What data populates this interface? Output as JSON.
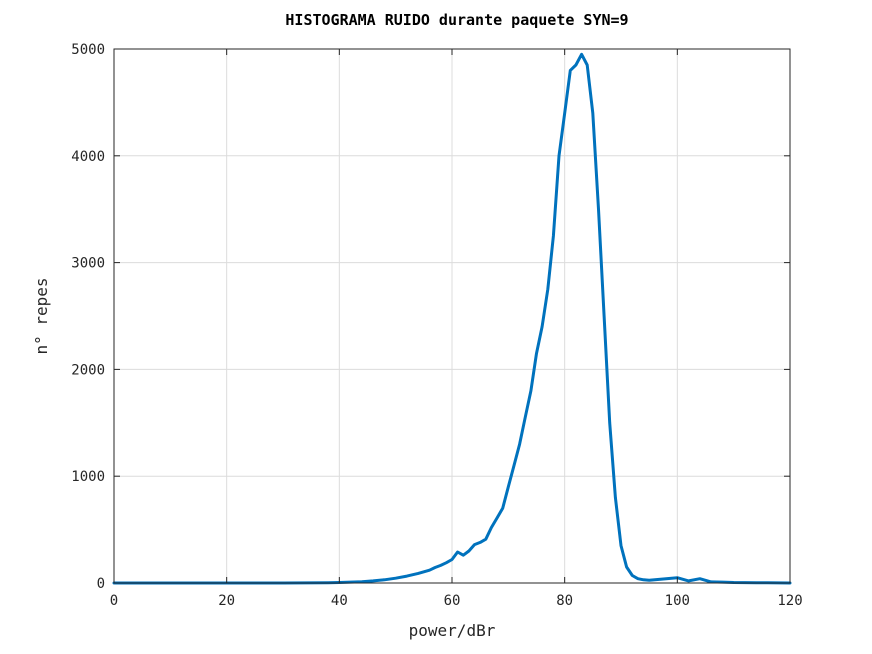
{
  "chart_data": {
    "type": "line",
    "title": "HISTOGRAMA RUIDO durante paquete SYN=9",
    "xlabel": "power/dBr",
    "ylabel": "n° repes",
    "xlim": [
      0,
      120
    ],
    "ylim": [
      0,
      5000
    ],
    "xticks": [
      0,
      20,
      40,
      60,
      80,
      100,
      120
    ],
    "yticks": [
      0,
      1000,
      2000,
      3000,
      4000,
      5000
    ],
    "grid": true,
    "series": [
      {
        "color": "#0072bd",
        "x": [
          0,
          10,
          20,
          30,
          38,
          40,
          42,
          44,
          46,
          48,
          50,
          52,
          54,
          56,
          57,
          58,
          59,
          60,
          61,
          62,
          63,
          64,
          65,
          66,
          67,
          68,
          69,
          70,
          71,
          72,
          73,
          74,
          75,
          76,
          77,
          78,
          79,
          80,
          81,
          82,
          83,
          84,
          85,
          86,
          87,
          88,
          89,
          90,
          91,
          92,
          93,
          94,
          95,
          96,
          98,
          100,
          102,
          104,
          106,
          108,
          110,
          112,
          114,
          116,
          118,
          120
        ],
        "y": [
          0,
          0,
          0,
          0,
          3,
          5,
          8,
          12,
          20,
          30,
          45,
          65,
          90,
          120,
          145,
          165,
          190,
          220,
          290,
          260,
          300,
          360,
          380,
          410,
          520,
          610,
          700,
          900,
          1100,
          1300,
          1550,
          1800,
          2150,
          2400,
          2750,
          3250,
          4000,
          4400,
          4800,
          4850,
          4950,
          4850,
          4400,
          3500,
          2500,
          1500,
          800,
          350,
          150,
          70,
          40,
          30,
          25,
          30,
          40,
          50,
          20,
          40,
          10,
          8,
          5,
          4,
          3,
          2,
          1,
          0
        ]
      }
    ]
  }
}
